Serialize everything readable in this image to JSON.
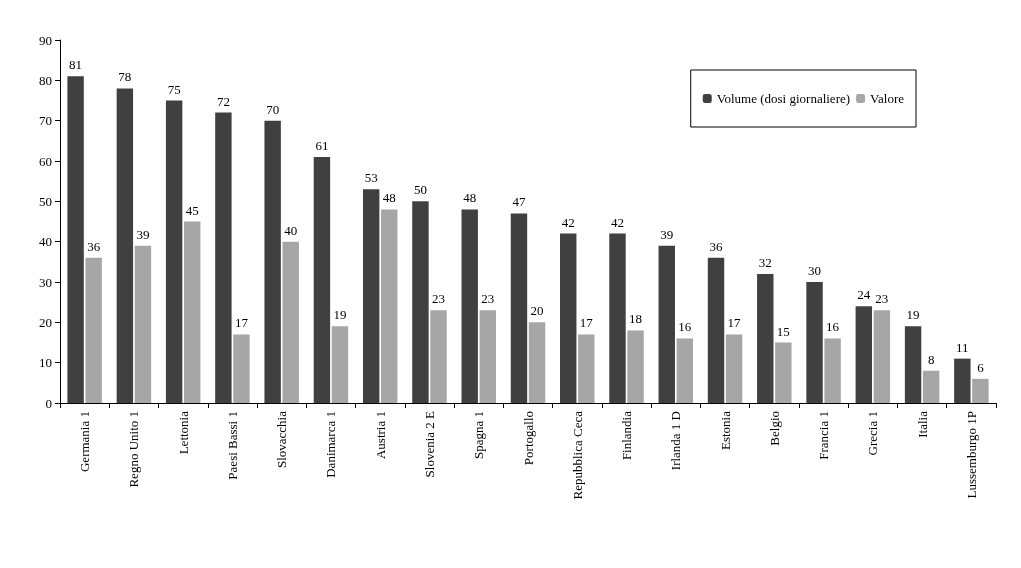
{
  "chart_data": {
    "type": "bar",
    "categories": [
      "Germania 1",
      "Regno Unito 1",
      "Lettonia",
      "Paesi Bassi 1",
      "Slovacchia",
      "Danimarca 1",
      "Austria 1",
      "Slovenia 2 E",
      "Spagna 1",
      "Portogallo",
      "Repubblica Ceca",
      "Finlandia",
      "Irlanda 1 D",
      "Estonia",
      "Belgio",
      "Francia 1",
      "Grecia 1",
      "Italia",
      "Lussemburgo 1P"
    ],
    "series": [
      {
        "name": "Volume (dosi giornaliere)",
        "color": "#404040",
        "values": [
          81,
          78,
          75,
          72,
          70,
          61,
          53,
          50,
          48,
          47,
          42,
          42,
          39,
          36,
          32,
          30,
          24,
          19,
          11
        ]
      },
      {
        "name": "Valore",
        "color": "#a6a6a6",
        "values": [
          36,
          39,
          45,
          17,
          40,
          19,
          48,
          23,
          23,
          20,
          17,
          18,
          16,
          17,
          15,
          16,
          23,
          8,
          6
        ]
      }
    ],
    "ylim": [
      0,
      90
    ],
    "yticks": [
      0,
      10,
      20,
      30,
      40,
      50,
      60,
      70,
      80,
      90
    ],
    "data_labels": true,
    "grid": false,
    "legend": "top right"
  }
}
